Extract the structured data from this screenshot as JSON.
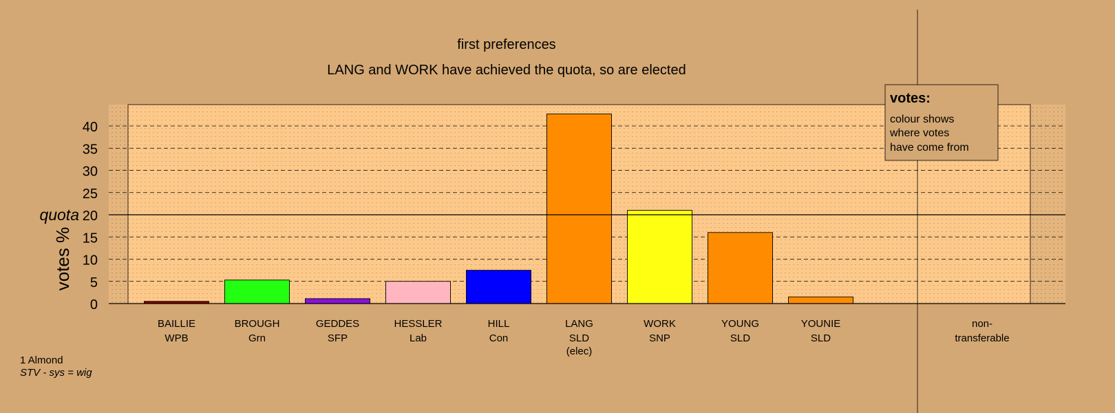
{
  "chart_data": {
    "type": "bar",
    "title": "first preferences",
    "subtitle": "LANG and WORK have achieved the quota, so are elected",
    "ylabel": "votes %",
    "ylim": [
      0,
      45
    ],
    "yticks": [
      0,
      5,
      10,
      15,
      20,
      25,
      30,
      35,
      40
    ],
    "grid": true,
    "quota": {
      "value": 20,
      "label": "quota"
    },
    "categories": [
      {
        "name": "BAILLIE",
        "party": "WPB",
        "note": "",
        "value": 0.5,
        "color": "#8b0000"
      },
      {
        "name": "BROUGH",
        "party": "Grn",
        "note": "",
        "value": 5.3,
        "color": "#22ff11"
      },
      {
        "name": "GEDDES",
        "party": "SFP",
        "note": "",
        "value": 1.1,
        "color": "#8811dd"
      },
      {
        "name": "HESSLER",
        "party": "Lab",
        "note": "",
        "value": 5.0,
        "color": "#ffb6c1"
      },
      {
        "name": "HILL",
        "party": "Con",
        "note": "",
        "value": 7.5,
        "color": "#0000ff"
      },
      {
        "name": "LANG",
        "party": "SLD",
        "note": "(elec)",
        "value": 42.7,
        "color": "#ff8c00"
      },
      {
        "name": "WORK",
        "party": "SNP",
        "note": "",
        "value": 21.0,
        "color": "#ffff11"
      },
      {
        "name": "YOUNG",
        "party": "SLD",
        "note": "",
        "value": 16.0,
        "color": "#ff8c00"
      },
      {
        "name": "YOUNIE",
        "party": "SLD",
        "note": "",
        "value": 1.5,
        "color": "#ff8c00"
      }
    ],
    "nontransferable": {
      "label_line1": "non-",
      "label_line2": "transferable",
      "value": 0
    },
    "legend": {
      "position": "top-right",
      "title": "votes:",
      "lines": [
        "colour shows",
        "where votes",
        "have come from"
      ]
    }
  },
  "footer": {
    "ward": "1 Almond",
    "system": "STV - sys = wig"
  },
  "colors": {
    "background": "#d4a874",
    "plot_fill": "#fdc98a",
    "plot_outer": "#e5b57e"
  }
}
